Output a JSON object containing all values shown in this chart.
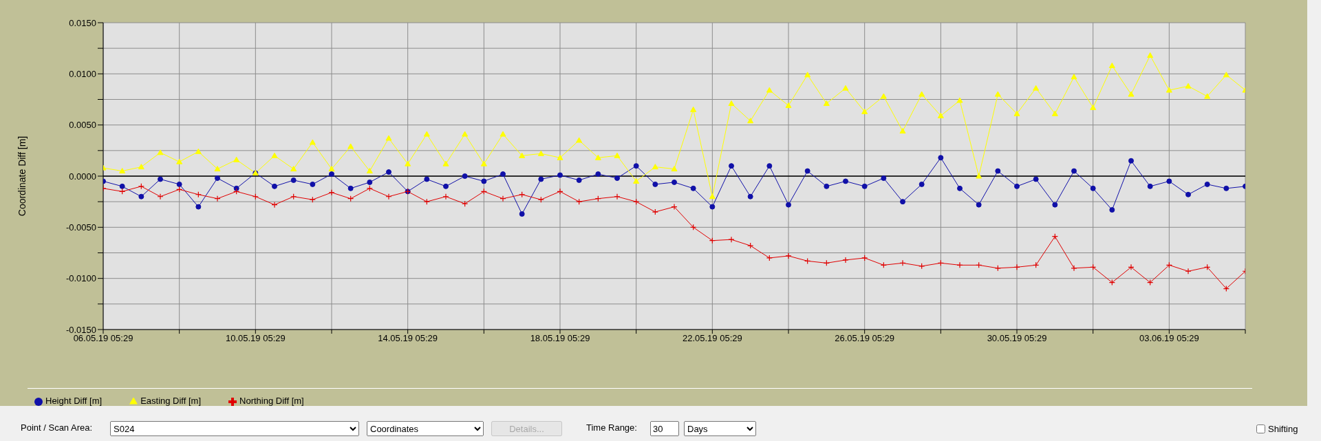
{
  "chart_data": {
    "type": "line",
    "ylabel": "Coordinate Diff [m]",
    "x": [
      "--05-06T05:29",
      "--05-06T17:29",
      "--05-07T05:29",
      "--05-07T17:29",
      "--05-08T05:29",
      "--05-08T17:29",
      "--05-09T05:29",
      "--05-09T17:29",
      "--05-10T05:29",
      "--05-10T17:29",
      "--05-11T05:29",
      "--05-11T17:29",
      "--05-12T05:29",
      "--05-12T17:29",
      "--05-13T05:29",
      "--05-13T17:29",
      "--05-14T05:29",
      "--05-14T17:29",
      "--05-15T05:29",
      "--05-15T17:29",
      "--05-16T05:29",
      "--05-16T17:29",
      "--05-17T05:29",
      "--05-17T17:29",
      "--05-18T05:29",
      "--05-18T17:29",
      "--05-19T05:29",
      "--05-19T17:29",
      "--05-20T05:29",
      "--05-20T17:29",
      "--05-21T05:29",
      "--05-21T17:29",
      "--05-22T05:29",
      "--05-22T17:29",
      "--05-23T05:29",
      "--05-23T17:29",
      "--05-24T05:29",
      "--05-24T17:29",
      "--05-25T05:29",
      "--05-25T17:29",
      "--05-26T05:29",
      "--05-26T17:29",
      "--05-27T05:29",
      "--05-27T17:29",
      "--05-28T05:29",
      "--05-28T17:29",
      "--05-29T05:29",
      "--05-29T17:29",
      "--05-30T05:29",
      "--05-30T17:29",
      "--05-31T05:29",
      "--05-31T17:29",
      "--06-01T05:29",
      "--06-01T17:29",
      "--06-02T05:29",
      "--06-02T17:29",
      "--06-03T05:29",
      "--06-03T17:29",
      "--06-04T05:29",
      "--06-04T17:29",
      "--06-05T05:29"
    ],
    "series": [
      {
        "name": "Height Diff [m]",
        "color": "#1010a8",
        "marker": "circle",
        "values": [
          -0.0005,
          -0.001,
          -0.002,
          -0.0003,
          -0.0008,
          -0.003,
          -0.0002,
          -0.0012,
          0.0003,
          -0.001,
          -0.0004,
          -0.0008,
          0.0002,
          -0.0012,
          -0.0006,
          0.0004,
          -0.0015,
          -0.0003,
          -0.001,
          0.0,
          -0.0005,
          0.0002,
          -0.0037,
          -0.0003,
          0.0001,
          -0.0004,
          0.0002,
          -0.0002,
          0.001,
          -0.0008,
          -0.0006,
          -0.0012,
          -0.003,
          0.001,
          -0.002,
          0.001,
          -0.0028,
          0.0005,
          -0.001,
          -0.0005,
          -0.001,
          -0.0002,
          -0.0025,
          -0.0008,
          0.0018,
          -0.0012,
          -0.0028,
          0.0005,
          -0.001,
          -0.0003,
          -0.0028,
          0.0005,
          -0.0012,
          -0.0033,
          0.0015,
          -0.001,
          -0.0005,
          -0.0018,
          -0.0008,
          -0.0012,
          -0.001
        ]
      },
      {
        "name": "Easting Diff [m]",
        "color": "#ffff00",
        "marker": "triangle",
        "values": [
          0.0008,
          0.0005,
          0.0009,
          0.0023,
          0.0014,
          0.0024,
          0.0007,
          0.0016,
          0.0003,
          0.002,
          0.0007,
          0.0033,
          0.0007,
          0.0029,
          0.0005,
          0.0037,
          0.0012,
          0.0041,
          0.0012,
          0.0041,
          0.0012,
          0.0041,
          0.002,
          0.0022,
          0.0018,
          0.0035,
          0.0018,
          0.002,
          -0.0005,
          0.0009,
          0.0007,
          0.0065,
          -0.002,
          0.0071,
          0.0054,
          0.0084,
          0.0069,
          0.0099,
          0.0071,
          0.0086,
          0.0063,
          0.0078,
          0.0044,
          0.008,
          0.0059,
          0.0074,
          0.0,
          0.008,
          0.0061,
          0.0086,
          0.0061,
          0.0097,
          0.0067,
          0.0108,
          0.008,
          0.0118,
          0.0084,
          0.0088,
          0.0078,
          0.0099,
          0.0084
        ]
      },
      {
        "name": "Northing Diff [m]",
        "color": "#e00000",
        "marker": "cross",
        "values": [
          -0.0012,
          -0.0015,
          -0.001,
          -0.002,
          -0.0013,
          -0.0018,
          -0.0022,
          -0.0015,
          -0.002,
          -0.0028,
          -0.002,
          -0.0023,
          -0.0016,
          -0.0022,
          -0.0012,
          -0.002,
          -0.0015,
          -0.0025,
          -0.002,
          -0.0027,
          -0.0015,
          -0.0022,
          -0.0018,
          -0.0023,
          -0.0015,
          -0.0025,
          -0.0022,
          -0.002,
          -0.0025,
          -0.0035,
          -0.003,
          -0.005,
          -0.0063,
          -0.0062,
          -0.0068,
          -0.008,
          -0.0078,
          -0.0083,
          -0.0085,
          -0.0082,
          -0.008,
          -0.0087,
          -0.0085,
          -0.0088,
          -0.0085,
          -0.0087,
          -0.0087,
          -0.009,
          -0.0089,
          -0.0087,
          -0.0059,
          -0.009,
          -0.0089,
          -0.0104,
          -0.0089,
          -0.0104,
          -0.0087,
          -0.0093,
          -0.0089,
          -0.011,
          -0.0093
        ]
      }
    ],
    "xlim": [
      "--05-06T05:29",
      "--06-05T05:29"
    ],
    "xticks": [
      {
        "value": "--05-06T05:29",
        "label": "06.05.19 05:29"
      },
      {
        "value": "--05-08T05:29",
        "label": null
      },
      {
        "value": "--05-10T05:29",
        "label": "10.05.19 05:29"
      },
      {
        "value": "--05-12T05:29",
        "label": null
      },
      {
        "value": "--05-14T05:29",
        "label": "14.05.19 05:29"
      },
      {
        "value": "--05-16T05:29",
        "label": null
      },
      {
        "value": "--05-18T05:29",
        "label": "18.05.19 05:29"
      },
      {
        "value": "--05-20T05:29",
        "label": null
      },
      {
        "value": "--05-22T05:29",
        "label": "22.05.19 05:29"
      },
      {
        "value": "--05-24T05:29",
        "label": null
      },
      {
        "value": "--05-26T05:29",
        "label": "26.05.19 05:29"
      },
      {
        "value": "--05-28T05:29",
        "label": null
      },
      {
        "value": "--05-30T05:29",
        "label": "30.05.19 05:29"
      },
      {
        "value": "--06-01T05:29",
        "label": null
      },
      {
        "value": "--06-03T05:29",
        "label": "03.06.19 05:29"
      },
      {
        "value": "--06-05T05:29",
        "label": null
      }
    ],
    "ylim": [
      -0.015,
      0.015
    ],
    "yticks": [
      {
        "value": -0.015,
        "label": "-0.0150"
      },
      {
        "value": -0.0125,
        "label": null
      },
      {
        "value": -0.01,
        "label": "-0.0100"
      },
      {
        "value": -0.0075,
        "label": null
      },
      {
        "value": -0.005,
        "label": "-0.0050"
      },
      {
        "value": -0.0025,
        "label": null
      },
      {
        "value": 0,
        "label": "0.0000"
      },
      {
        "value": 0.0025,
        "label": null
      },
      {
        "value": 0.005,
        "label": "0.0050"
      },
      {
        "value": 0.0075,
        "label": null
      },
      {
        "value": 0.01,
        "label": "0.0100"
      },
      {
        "value": 0.0125,
        "label": null
      },
      {
        "value": 0.015,
        "label": "0.0150"
      }
    ],
    "ref_lines": [
      {
        "axis": "y",
        "value": 0,
        "color": "#000000"
      }
    ],
    "grid": true,
    "legend": "bottom left",
    "line_style": "solid",
    "annotations": [
      "Point / Scan Area:",
      "S024",
      "Coordinates",
      "Details...",
      "Time Range:",
      "30",
      "Days",
      "Shifting"
    ]
  }
}
